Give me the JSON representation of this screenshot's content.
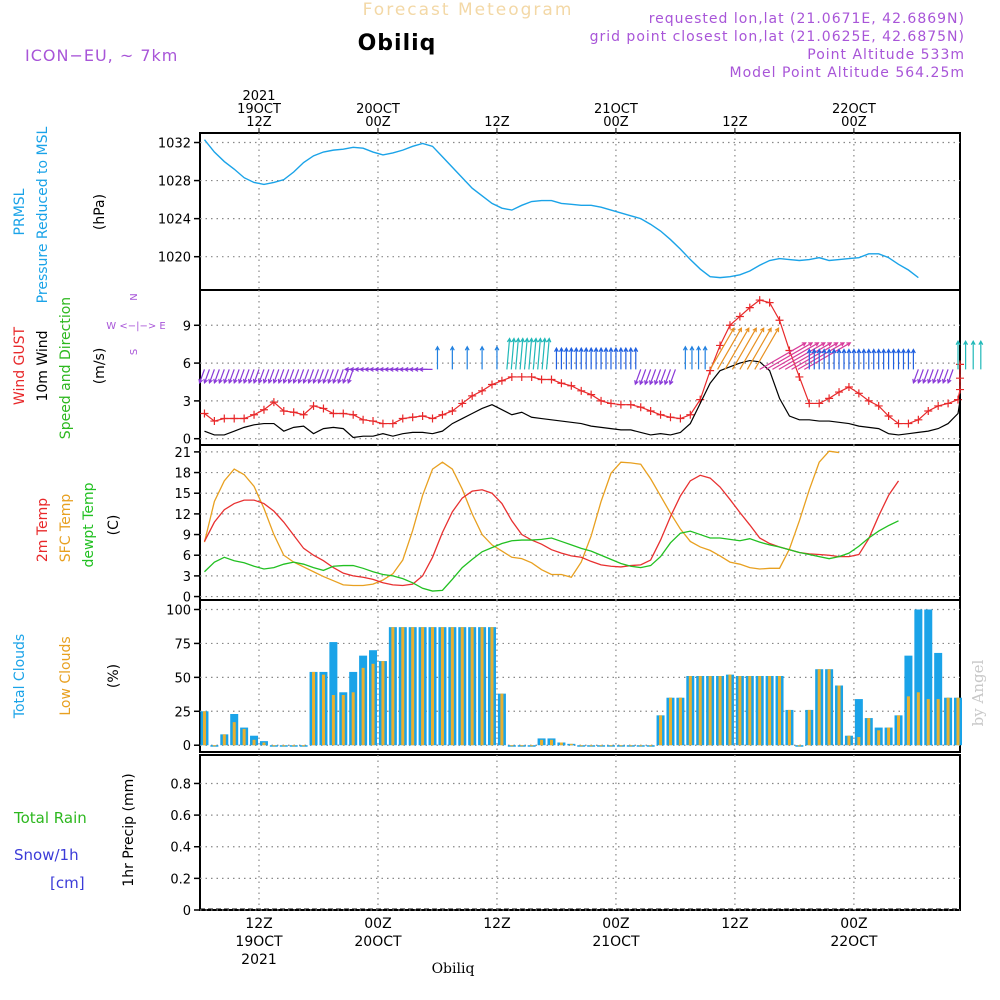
{
  "header": {
    "title_faded": "Forecast Meteogram",
    "model": "ICON−EU,  ~ 7km",
    "location": "Obiliq",
    "requested": "requested lon,lat (21.0671E, 42.6869N)",
    "grid_point": "grid point closest lon,lat (21.0625E, 42.6875N)",
    "point_alt": "Point Altitude 533m",
    "model_alt": "Model Point Altitude 564.25m",
    "signature": "by Angel",
    "footer_location": "Obiliq"
  },
  "colors": {
    "pressure": "#1aa3e8",
    "gust": "#e8282a",
    "wind": "#000000",
    "direction": "#2db81f",
    "temp": "#e83030",
    "sfc": "#e8a020",
    "dew": "#22c022",
    "total_cloud": "#1aa3e8",
    "low_cloud": "#e8b030",
    "snow": "#3b3bd8",
    "purple": "#a855d8",
    "grid": "#888888"
  },
  "time_axis": {
    "top_labels": [
      {
        "h": 0,
        "lines": [
          "2021",
          "19OCT",
          "12Z"
        ]
      },
      {
        "h": 12,
        "lines": [
          "20OCT",
          "00Z"
        ]
      },
      {
        "h": 24,
        "lines": [
          "12Z"
        ]
      },
      {
        "h": 36,
        "lines": [
          "21OCT",
          "00Z"
        ]
      },
      {
        "h": 48,
        "lines": [
          "12Z"
        ]
      },
      {
        "h": 60,
        "lines": [
          "22OCT",
          "00Z"
        ]
      }
    ],
    "bottom_labels": [
      {
        "h": 0,
        "lines": [
          "12Z",
          "19OCT",
          "2021"
        ]
      },
      {
        "h": 12,
        "lines": [
          "00Z",
          "20OCT"
        ]
      },
      {
        "h": 24,
        "lines": [
          "12Z"
        ]
      },
      {
        "h": 36,
        "lines": [
          "00Z",
          "21OCT"
        ]
      },
      {
        "h": 48,
        "lines": [
          "12Z"
        ]
      },
      {
        "h": 60,
        "lines": [
          "00Z",
          "22OCT"
        ]
      }
    ]
  },
  "panels": {
    "pressure": {
      "label1": "PRMSL",
      "label2": "Pressure Reduced to MSL",
      "unit": "(hPa)"
    },
    "wind": {
      "label_gust": "Wind GUST",
      "label_wind": "10m Wind",
      "label_dir": "Speed and Direction",
      "unit": "(m/s)",
      "compass_n": "N",
      "compass_s": "S",
      "compass_we": "W <−|−> E"
    },
    "temp": {
      "label_2m": "2m Temp",
      "label_sfc": "SFC Temp",
      "label_dew": "dewpt Temp",
      "unit": "(C)"
    },
    "cloud": {
      "label_total": "Total Clouds",
      "label_low": "Low Clouds",
      "unit": "(%)"
    },
    "precip": {
      "label_rain": "Total  Rain",
      "label_snow1": "Snow/1h",
      "label_snow2": "[cm]",
      "unit": "1hr Precip (mm)"
    }
  },
  "chart_data": [
    {
      "type": "line",
      "title": "PRMSL Pressure Reduced to MSL",
      "ylabel": "(hPa)",
      "ylim": [
        1016.5,
        1033
      ],
      "yticks": [
        1020,
        1024,
        1028,
        1032
      ],
      "x_start": -5.5,
      "x_step": 1,
      "series": [
        {
          "name": "PRMSL",
          "values": [
            1032.3,
            1031.0,
            1030.0,
            1029.2,
            1028.3,
            1027.8,
            1027.6,
            1027.8,
            1028.1,
            1028.9,
            1029.9,
            1030.6,
            1031.0,
            1031.2,
            1031.3,
            1031.5,
            1031.4,
            1031.0,
            1030.7,
            1030.9,
            1031.2,
            1031.6,
            1031.9,
            1031.6,
            1030.5,
            1029.4,
            1028.3,
            1027.2,
            1026.4,
            1025.6,
            1025.1,
            1024.9,
            1025.4,
            1025.8,
            1025.9,
            1025.9,
            1025.6,
            1025.5,
            1025.4,
            1025.4,
            1025.2,
            1024.9,
            1024.6,
            1024.3,
            1024.0,
            1023.4,
            1022.7,
            1021.8,
            1020.8,
            1019.7,
            1018.7,
            1017.9,
            1017.8,
            1017.9,
            1018.1,
            1018.5,
            1019.1,
            1019.6,
            1019.8,
            1019.7,
            1019.6,
            1019.7,
            1019.9,
            1019.6,
            1019.7,
            1019.8,
            1019.9,
            1020.3,
            1020.3,
            1019.9,
            1019.2,
            1018.6,
            1017.8
          ]
        }
      ]
    },
    {
      "type": "line",
      "title": "Wind GUST / 10m Wind Speed and Direction",
      "ylabel": "(m/s)",
      "ylim": [
        -0.5,
        11.8
      ],
      "yticks": [
        0,
        3,
        6,
        9
      ],
      "x_start": -5.5,
      "x_step": 1,
      "series": [
        {
          "name": "Wind GUST",
          "values": [
            2.0,
            1.4,
            1.6,
            1.6,
            1.6,
            1.9,
            2.3,
            2.9,
            2.2,
            2.1,
            1.9,
            2.6,
            2.4,
            2.0,
            2.0,
            1.9,
            1.5,
            1.4,
            1.2,
            1.2,
            1.6,
            1.7,
            1.8,
            1.6,
            1.9,
            2.2,
            2.8,
            3.4,
            3.8,
            4.3,
            4.6,
            4.9,
            4.9,
            4.9,
            4.7,
            4.7,
            4.4,
            4.2,
            3.8,
            3.5,
            3.0,
            2.8,
            2.7,
            2.7,
            2.5,
            2.2,
            1.9,
            1.7,
            1.6,
            1.9,
            3.1,
            5.4,
            7.4,
            9.0,
            9.7,
            10.4,
            11.0,
            10.8,
            9.4,
            7.0,
            4.9,
            2.8,
            2.8,
            3.2,
            3.7,
            4.1,
            3.6,
            3.0,
            2.6,
            1.8,
            1.2,
            1.2,
            1.5,
            2.2,
            2.6,
            2.8,
            3.1,
            3.9,
            4.8,
            5.9
          ]
        },
        {
          "name": "10m Wind",
          "values": [
            0.6,
            0.3,
            0.3,
            0.6,
            0.9,
            1.1,
            1.2,
            1.2,
            0.6,
            0.9,
            1.0,
            0.4,
            0.8,
            0.9,
            0.8,
            0.1,
            0.2,
            0.2,
            0.4,
            0.2,
            0.4,
            0.5,
            0.5,
            0.4,
            0.6,
            1.2,
            1.6,
            2.0,
            2.4,
            2.7,
            2.3,
            1.9,
            2.1,
            1.7,
            1.6,
            1.5,
            1.4,
            1.3,
            1.2,
            1.0,
            0.9,
            0.8,
            0.7,
            0.7,
            0.5,
            0.3,
            0.4,
            0.3,
            0.5,
            1.2,
            2.8,
            4.4,
            5.4,
            5.7,
            6.0,
            6.2,
            6.1,
            5.4,
            3.2,
            1.8,
            1.5,
            1.5,
            1.4,
            1.4,
            1.3,
            1.2,
            1.0,
            0.9,
            0.8,
            0.4,
            0.3,
            0.4,
            0.5,
            0.6,
            0.8,
            1.2,
            2.0,
            3.0,
            3.5
          ]
        }
      ],
      "direction_arrows": [
        {
          "h_from": -5.5,
          "h_to": 9.5,
          "count": 31,
          "color": "#8a3ad8",
          "dir_deg": 200,
          "len": 0.6
        },
        {
          "h_from": 10,
          "h_to": 17.5,
          "count": 16,
          "color": "#8a3ad8",
          "dir_deg": 270,
          "len": 0.5
        },
        {
          "h_from": 18,
          "h_to": 24,
          "count": 5,
          "color": "#2080e0",
          "dir_deg": 0,
          "len": 1.2
        },
        {
          "h_from": 25,
          "h_to": 29,
          "count": 10,
          "color": "#20b8b8",
          "dir_deg": 5,
          "len": 1.8
        },
        {
          "h_from": 30,
          "h_to": 38,
          "count": 17,
          "color": "#2060e0",
          "dir_deg": 0,
          "len": 1.1
        },
        {
          "h_from": 38.5,
          "h_to": 42,
          "count": 8,
          "color": "#8a3ad8",
          "dir_deg": 200,
          "len": 0.7
        },
        {
          "h_from": 43,
          "h_to": 45,
          "count": 4,
          "color": "#2080e0",
          "dir_deg": 0,
          "len": 1.2
        },
        {
          "h_from": 45.5,
          "h_to": 50,
          "count": 7,
          "color": "#e89020",
          "dir_deg": 30,
          "len": 3.0
        },
        {
          "h_from": 50.5,
          "h_to": 55,
          "count": 8,
          "color": "#d83a9a",
          "dir_deg": 60,
          "len": 3.4
        },
        {
          "h_from": 55.5,
          "h_to": 66,
          "count": 22,
          "color": "#2060e0",
          "dir_deg": 0,
          "len": 1.0
        },
        {
          "h_from": 66.5,
          "h_to": 70,
          "count": 8,
          "color": "#8a3ad8",
          "dir_deg": 200,
          "len": 0.6
        },
        {
          "h_from": 70.5,
          "h_to": 72.8,
          "count": 4,
          "color": "#20b8b8",
          "dir_deg": 0,
          "len": 1.6
        }
      ]
    },
    {
      "type": "line",
      "title": "2m Temp / SFC Temp / dewpt Temp",
      "ylabel": "(C)",
      "ylim": [
        -0.5,
        22
      ],
      "yticks": [
        0,
        3,
        6,
        9,
        12,
        15,
        18,
        21
      ],
      "x_start": -5.5,
      "x_step": 1,
      "series": [
        {
          "name": "2m Temp",
          "values": [
            8.0,
            10.8,
            12.6,
            13.5,
            14.0,
            14.0,
            13.5,
            12.4,
            10.8,
            8.9,
            7.0,
            6.0,
            5.2,
            4.2,
            3.4,
            3.0,
            2.8,
            2.5,
            2.0,
            1.7,
            1.6,
            1.8,
            3.0,
            5.7,
            9.3,
            12.3,
            14.3,
            15.3,
            15.5,
            15.0,
            13.5,
            11.0,
            9.0,
            8.2,
            7.6,
            6.8,
            6.3,
            5.9,
            5.7,
            5.1,
            4.6,
            4.4,
            4.3,
            4.5,
            4.6,
            5.3,
            8.2,
            11.6,
            14.6,
            16.8,
            17.6,
            17.2,
            15.9,
            14.1,
            12.2,
            10.4,
            8.5,
            7.7,
            7.2,
            6.8,
            6.4,
            6.2,
            6.1,
            6.0,
            5.8,
            5.8,
            6.1,
            8.4,
            11.7,
            14.7,
            16.8
          ]
        },
        {
          "name": "SFC Temp",
          "values": [
            7.9,
            13.8,
            16.8,
            18.5,
            17.7,
            16.0,
            12.8,
            9.0,
            6.0,
            5.0,
            4.3,
            3.6,
            2.9,
            2.3,
            1.7,
            1.6,
            1.6,
            1.8,
            2.4,
            3.3,
            5.3,
            9.6,
            14.7,
            18.5,
            19.5,
            18.5,
            15.6,
            12.0,
            9.0,
            7.5,
            6.6,
            5.7,
            5.5,
            4.9,
            3.9,
            3.2,
            3.2,
            2.8,
            5.0,
            8.8,
            13.8,
            17.9,
            19.5,
            19.4,
            19.2,
            17.1,
            14.6,
            12.1,
            9.8,
            8.0,
            7.2,
            6.7,
            5.9,
            5.0,
            4.7,
            4.2,
            4.0,
            4.1,
            4.1,
            6.9,
            11.0,
            15.5,
            19.5,
            21.1,
            20.9
          ]
        },
        {
          "name": "dewpt Temp",
          "values": [
            3.6,
            5.0,
            5.7,
            5.2,
            4.9,
            4.4,
            4.0,
            4.2,
            4.7,
            5.0,
            4.7,
            4.2,
            3.8,
            4.4,
            4.5,
            4.5,
            4.1,
            3.6,
            3.2,
            3.0,
            2.6,
            2.0,
            1.2,
            0.8,
            0.9,
            2.5,
            4.2,
            5.4,
            6.5,
            7.1,
            7.7,
            8.1,
            8.2,
            8.2,
            8.3,
            8.5,
            8.0,
            7.5,
            7.0,
            6.6,
            6.0,
            5.4,
            4.8,
            4.4,
            4.2,
            4.5,
            5.8,
            7.8,
            9.2,
            9.5,
            9.0,
            8.5,
            8.5,
            8.3,
            8.1,
            8.4,
            7.9,
            7.5,
            7.2,
            6.8,
            6.4,
            6.1,
            5.8,
            5.5,
            5.8,
            6.3,
            7.3,
            8.5,
            9.5,
            10.3,
            11.0
          ]
        }
      ]
    },
    {
      "type": "bar",
      "title": "Total Clouds / Low Clouds",
      "ylabel": "(%)",
      "ylim": [
        -5,
        107
      ],
      "yticks": [
        0,
        25,
        50,
        75,
        100
      ],
      "x_start": -5.5,
      "x_step": 1,
      "series": [
        {
          "name": "Total Clouds",
          "values": [
            25,
            0,
            8,
            23,
            13,
            7,
            3,
            0,
            0,
            0,
            0,
            54,
            54,
            76,
            39,
            54,
            66,
            70,
            62,
            87,
            87,
            87,
            87,
            87,
            87,
            87,
            87,
            87,
            87,
            87,
            38,
            0,
            0,
            0,
            5,
            5,
            2,
            1,
            0,
            0,
            0,
            0,
            0,
            0,
            0,
            0,
            22,
            35,
            35,
            51,
            51,
            51,
            51,
            52,
            51,
            51,
            51,
            51,
            51,
            26,
            0,
            26,
            56,
            56,
            44,
            7,
            34,
            20,
            13,
            13,
            22,
            66,
            100,
            100,
            68,
            35,
            35,
            48,
            60,
            68,
            65,
            58,
            47,
            34,
            31,
            26,
            52
          ]
        },
        {
          "name": "Low Clouds",
          "values": [
            25,
            0,
            8,
            17,
            12,
            4,
            2,
            0,
            0,
            0,
            0,
            54,
            52,
            37,
            37,
            39,
            57,
            60,
            62,
            87,
            87,
            87,
            87,
            87,
            87,
            87,
            87,
            87,
            87,
            87,
            38,
            0,
            0,
            0,
            4,
            4,
            2,
            1,
            0,
            0,
            0,
            0,
            0,
            0,
            0,
            0,
            22,
            35,
            35,
            51,
            51,
            51,
            51,
            52,
            51,
            51,
            51,
            51,
            51,
            26,
            0,
            26,
            56,
            56,
            44,
            7,
            6,
            20,
            11,
            13,
            22,
            36,
            39,
            34,
            34,
            35,
            35,
            48,
            60,
            68,
            65,
            58,
            47,
            34,
            31,
            7,
            41
          ]
        }
      ]
    },
    {
      "type": "line",
      "title": "1hr Precip",
      "ylabel": "1hr Precip (mm)",
      "ylim": [
        0,
        0.98
      ],
      "yticks": [
        0,
        0.2,
        0.4,
        0.6,
        0.8
      ],
      "series": [
        {
          "name": "Total Rain",
          "values": []
        },
        {
          "name": "Snow/1h",
          "values": []
        }
      ]
    }
  ]
}
